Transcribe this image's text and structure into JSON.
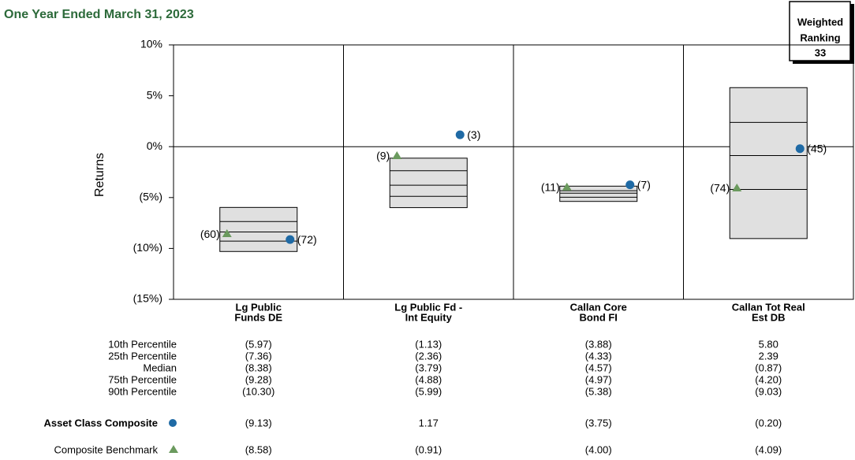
{
  "chart_data": {
    "type": "percentile_box",
    "subtitle": "One Year Ended March 31, 2023",
    "y_label": "Returns",
    "ranking_box": {
      "title": [
        "Weighted",
        "Ranking"
      ],
      "value": 33
    },
    "categories": [
      [
        "Lg Public",
        "Funds DE"
      ],
      [
        "Lg Public Fd -",
        "Int Equity"
      ],
      [
        "Callan Core",
        "Bond FI"
      ],
      [
        "Callan Tot Real",
        "Est DB"
      ]
    ],
    "ylim": [
      -15,
      10
    ],
    "yticks": [
      {
        "value": -15,
        "label": "(15%)"
      },
      {
        "value": -10,
        "label": "(10%)"
      },
      {
        "value": -5,
        "label": "(5%)"
      },
      {
        "value": 0,
        "label": "0%"
      },
      {
        "value": 5,
        "label": "5%"
      },
      {
        "value": 10,
        "label": "10%"
      }
    ],
    "percentiles": [
      {
        "name": "10th Percentile",
        "values": [
          -5.97,
          -1.13,
          -3.88,
          5.8
        ],
        "value_labels": [
          "(5.97)",
          "(1.13)",
          "(3.88)",
          "5.80"
        ]
      },
      {
        "name": "25th Percentile",
        "values": [
          -7.36,
          -2.36,
          -4.33,
          2.39
        ],
        "value_labels": [
          "(7.36)",
          "(2.36)",
          "(4.33)",
          "2.39"
        ]
      },
      {
        "name": "Median",
        "values": [
          -8.38,
          -3.79,
          -4.57,
          -0.87
        ],
        "value_labels": [
          "(8.38)",
          "(3.79)",
          "(4.57)",
          "(0.87)"
        ]
      },
      {
        "name": "75th Percentile",
        "values": [
          -9.28,
          -4.88,
          -4.97,
          -4.2
        ],
        "value_labels": [
          "(9.28)",
          "(4.88)",
          "(4.97)",
          "(4.20)"
        ]
      },
      {
        "name": "90th Percentile",
        "values": [
          -10.3,
          -5.99,
          -5.38,
          -9.03
        ],
        "value_labels": [
          "(10.30)",
          "(5.99)",
          "(5.38)",
          "(9.03)"
        ]
      }
    ],
    "series": [
      {
        "name": "Asset Class Composite",
        "marker": "circle",
        "color": "#1f6aa5",
        "values": [
          -9.13,
          1.17,
          -3.75,
          -0.2
        ],
        "value_labels": [
          "(9.13)",
          "1.17",
          "(3.75)",
          "(0.20)"
        ],
        "ranks": [
          72,
          3,
          7,
          45
        ],
        "rank_labels": [
          "(72)",
          "(3)",
          "(7)",
          "(45)"
        ]
      },
      {
        "name": "Composite Benchmark",
        "marker": "triangle",
        "color": "#6b9a5e",
        "values": [
          -8.58,
          -0.91,
          -4.0,
          -4.09
        ],
        "value_labels": [
          "(8.58)",
          "(0.91)",
          "(4.00)",
          "(4.09)"
        ],
        "ranks": [
          60,
          9,
          11,
          74
        ],
        "rank_labels": [
          "(60)",
          "(9)",
          "(11)",
          "(74)"
        ]
      }
    ]
  }
}
